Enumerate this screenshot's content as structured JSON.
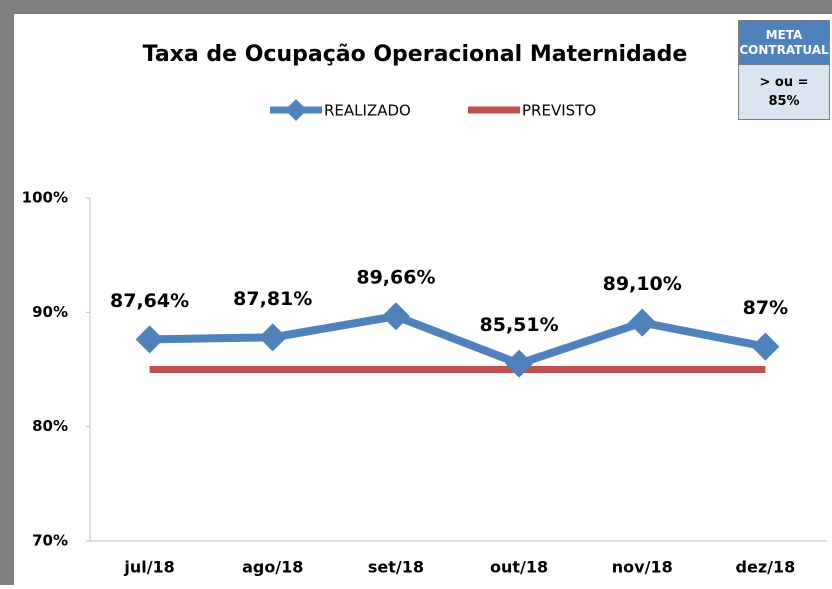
{
  "chart_data": {
    "type": "line",
    "title": "Taxa de Ocupação Operacional Maternidade",
    "categories": [
      "jul/18",
      "ago/18",
      "set/18",
      "out/18",
      "nov/18",
      "dez/18"
    ],
    "series": [
      {
        "name": "REALIZADO",
        "color": "#4f81bd",
        "values": [
          87.64,
          87.81,
          89.66,
          85.51,
          89.1,
          87
        ],
        "value_labels": [
          "87,64%",
          "87,81%",
          "89,66%",
          "85,51%",
          "89,10%",
          "87%"
        ]
      },
      {
        "name": "PREVISTO",
        "color": "#c0504d",
        "values": [
          85,
          85,
          85,
          85,
          85,
          85
        ]
      }
    ],
    "ylim": [
      70,
      100
    ],
    "yticks": [
      {
        "value": 70,
        "label": "70%"
      },
      {
        "value": 80,
        "label": "80%"
      },
      {
        "value": 90,
        "label": "90%"
      },
      {
        "value": 100,
        "label": "100%"
      }
    ],
    "grid": false,
    "legend": "top"
  },
  "meta_box": {
    "header": "META CONTRATUAL",
    "lines": [
      "> ou =",
      "85%"
    ]
  }
}
